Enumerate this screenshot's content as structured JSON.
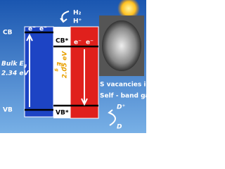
{
  "reaction": {
    "product": "H₂",
    "reactant": "H⁺"
  },
  "bands": {
    "cb": "CB",
    "vb": "VB",
    "cb_star": "CB*",
    "vb_star": "VB*",
    "electrons": [
      "e⁻",
      "e⁻",
      "e⁻",
      "e⁻"
    ]
  },
  "bulk_gap": {
    "prefix": "Bulk ",
    "symbol": "E",
    "sub": "g",
    "value": "2.34 eV"
  },
  "narrow_gap": {
    "symbol": "E",
    "sub": "g",
    "sup": "*",
    "value": "2.05 eV"
  },
  "captions": [
    "S vacancies induced",
    "Self - band gap narrowing"
  ],
  "donor": {
    "oxidized": "D⁺",
    "reduced": "D"
  }
}
